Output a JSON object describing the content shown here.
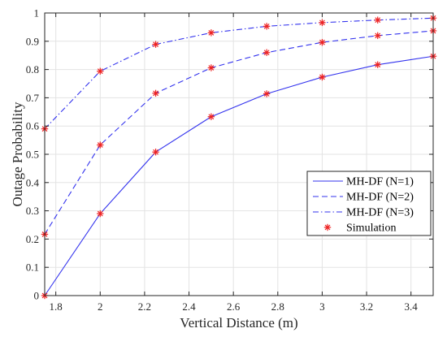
{
  "chart_data": {
    "type": "line",
    "xlabel": "Vertical Distance (m)",
    "ylabel": "Outage Probability",
    "xlim": [
      1.75,
      3.5
    ],
    "ylim": [
      0,
      1
    ],
    "xticks": [
      1.8,
      2,
      2.2,
      2.4,
      2.6,
      2.8,
      3,
      3.2,
      3.4
    ],
    "xtick_labels": [
      "1.8",
      "2",
      "2.2",
      "2.4",
      "2.6",
      "2.8",
      "3",
      "3.2",
      "3.4"
    ],
    "yticks": [
      0,
      0.1,
      0.2,
      0.3,
      0.4,
      0.5,
      0.6,
      0.7,
      0.8,
      0.9,
      1
    ],
    "ytick_labels": [
      "0",
      "0.1",
      "0.2",
      "0.3",
      "0.4",
      "0.5",
      "0.6",
      "0.7",
      "0.8",
      "0.9",
      "1"
    ],
    "grid": true,
    "legend_position": "bottom-right",
    "series": [
      {
        "name": "MH-DF (N=1)",
        "style": "solid",
        "color": "#3333ee",
        "x": [
          1.75,
          2,
          2.25,
          2.5,
          2.75,
          3,
          3.25,
          3.5
        ],
        "y": [
          0.0,
          0.29,
          0.508,
          0.633,
          0.714,
          0.773,
          0.817,
          0.847
        ]
      },
      {
        "name": "MH-DF (N=2)",
        "style": "dashed",
        "color": "#3333ee",
        "x": [
          1.75,
          2,
          2.25,
          2.5,
          2.75,
          3,
          3.25,
          3.5
        ],
        "y": [
          0.217,
          0.533,
          0.716,
          0.806,
          0.86,
          0.896,
          0.92,
          0.937
        ]
      },
      {
        "name": "MH-DF (N=3)",
        "style": "dashdot",
        "color": "#3333ee",
        "x": [
          1.75,
          2,
          2.25,
          2.5,
          2.75,
          3,
          3.25,
          3.5
        ],
        "y": [
          0.59,
          0.794,
          0.889,
          0.93,
          0.953,
          0.966,
          0.975,
          0.982
        ]
      }
    ],
    "markers": {
      "name": "Simulation",
      "symbol": "*",
      "color": "#ee2222"
    }
  }
}
